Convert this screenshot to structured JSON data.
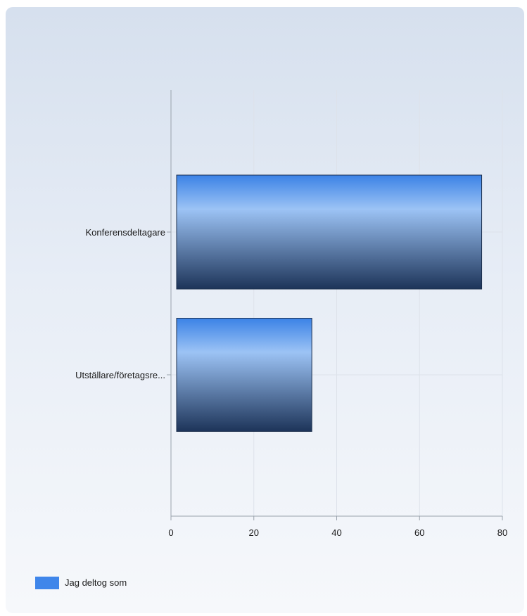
{
  "chart_data": {
    "type": "bar",
    "orientation": "horizontal",
    "categories": [
      "Konferensdeltagare",
      "Utställare/företagsre..."
    ],
    "series": [
      {
        "name": "Jag deltog som",
        "values": [
          75,
          34
        ]
      }
    ],
    "xlim": [
      0,
      80
    ],
    "xticks": [
      0,
      20,
      40,
      60,
      80
    ],
    "grid": true,
    "legend_position": "bottom-left",
    "colors": {
      "bar_light": "#9cc3f5",
      "bar_top": "#3b82e6",
      "bar_dark": "#1d3459",
      "legend_swatch": "#3f86ea",
      "gridline": "#dde2ea",
      "axis": "#9aa3ad"
    }
  }
}
